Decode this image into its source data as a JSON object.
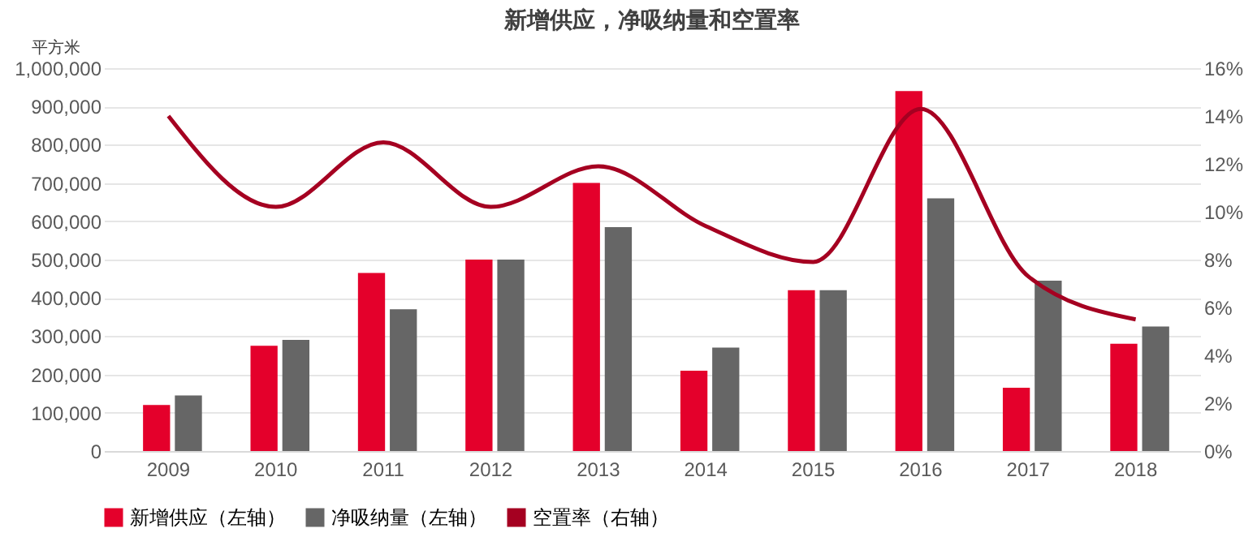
{
  "chart_data": {
    "type": "bar",
    "title": "新增供应，净吸纳量和空置率",
    "ylabel": "平方米",
    "categories": [
      "2009",
      "2010",
      "2011",
      "2012",
      "2013",
      "2014",
      "2015",
      "2016",
      "2017",
      "2018"
    ],
    "series": [
      {
        "name": "新增供应（左轴）",
        "color": "#e4002b",
        "values": [
          120000,
          275000,
          465000,
          500000,
          700000,
          210000,
          420000,
          940000,
          165000,
          280000
        ]
      },
      {
        "name": "净吸纳量（左轴）",
        "color": "#666666",
        "values": [
          145000,
          290000,
          370000,
          500000,
          585000,
          270000,
          420000,
          660000,
          445000,
          325000
        ]
      },
      {
        "name": "空置率（右轴）",
        "color": "#a50021",
        "type": "line",
        "axis": "y2",
        "values": [
          14.0,
          10.2,
          12.9,
          10.2,
          11.9,
          9.4,
          7.9,
          14.3,
          7.3,
          5.5
        ]
      }
    ],
    "ylim": [
      0,
      1000000
    ],
    "yticks": [
      0,
      {
        "value": 100000,
        "label": "100,000"
      },
      {
        "value": 200000,
        "label": "200,000"
      },
      {
        "value": 300000,
        "label": "300,000"
      },
      {
        "value": 400000,
        "label": "400,000"
      },
      {
        "value": 500000,
        "label": "500,000"
      },
      {
        "value": 600000,
        "label": "600,000"
      },
      {
        "value": 700000,
        "label": "700,000"
      },
      {
        "value": 800000,
        "label": "800,000"
      },
      {
        "value": 900000,
        "label": "900,000"
      },
      {
        "value": 1000000,
        "label": "1,000,000"
      }
    ],
    "y2lim": [
      0,
      16
    ],
    "y2ticks": [
      {
        "value": 0,
        "label": "0%"
      },
      {
        "value": 2,
        "label": "2%"
      },
      {
        "value": 4,
        "label": "4%"
      },
      {
        "value": 6,
        "label": "6%"
      },
      {
        "value": 8,
        "label": "8%"
      },
      {
        "value": 10,
        "label": "10%"
      },
      {
        "value": 12,
        "label": "12%"
      },
      {
        "value": 14,
        "label": "14%"
      },
      {
        "value": 16,
        "label": "16%"
      }
    ],
    "grid": "y",
    "legend": "bottom",
    "marker": "none",
    "line_style": "solid"
  }
}
